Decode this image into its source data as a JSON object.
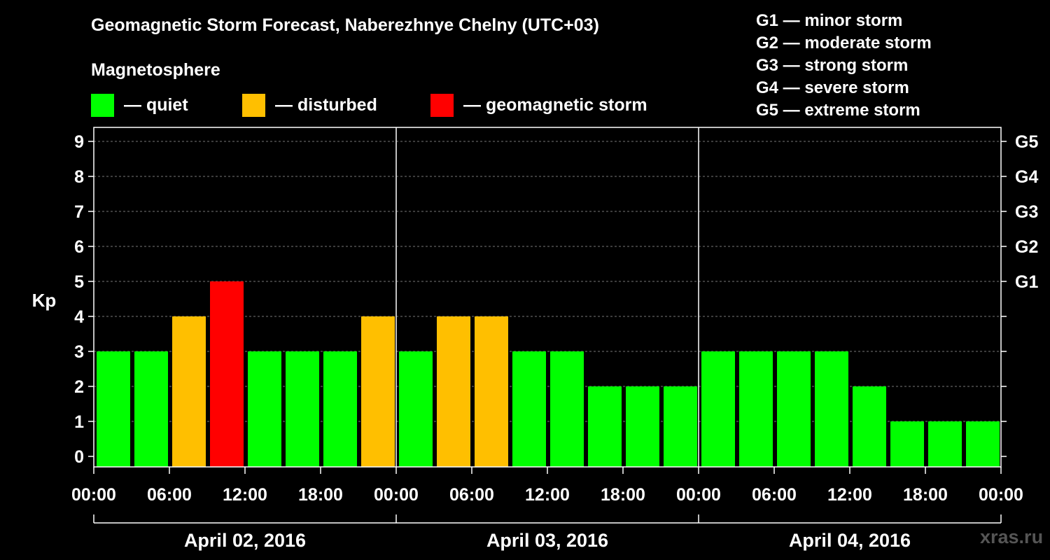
{
  "header": {
    "title": "Geomagnetic Storm Forecast, Naberezhnye Chelny (UTC+03)",
    "magnetosphere_label": "Magnetosphere"
  },
  "legend": {
    "items": [
      {
        "label": "— quiet",
        "color": "#00ff00"
      },
      {
        "label": "— disturbed",
        "color": "#ffbf00"
      },
      {
        "label": "— geomagnetic storm",
        "color": "#ff0000"
      }
    ]
  },
  "storm_scale": [
    "G1 — minor storm",
    "G2 — moderate storm",
    "G3 — strong storm",
    "G4 — severe storm",
    "G5 — extreme storm"
  ],
  "watermark": "xras.ru",
  "chart_data": {
    "type": "bar",
    "title": "Geomagnetic Storm Forecast, Naberezhnye Chelny (UTC+03)",
    "ylabel": "Kp",
    "xlabel": "",
    "ylim": [
      0,
      9
    ],
    "yticks": [
      "0",
      "1",
      "2",
      "3",
      "4",
      "5",
      "6",
      "7",
      "8",
      "9"
    ],
    "right_ticks": [
      {
        "value": 5,
        "label": "G1"
      },
      {
        "value": 6,
        "label": "G2"
      },
      {
        "value": 7,
        "label": "G3"
      },
      {
        "value": 8,
        "label": "G4"
      },
      {
        "value": 9,
        "label": "G5"
      }
    ],
    "x_tick_labels": [
      "00:00",
      "06:00",
      "12:00",
      "18:00",
      "00:00",
      "06:00",
      "12:00",
      "18:00",
      "00:00",
      "06:00",
      "12:00",
      "18:00",
      "00:00"
    ],
    "days": [
      "April 02, 2016",
      "April 03, 2016",
      "April 04, 2016"
    ],
    "interval_hours": 3,
    "values": [
      3,
      3,
      4,
      5,
      3,
      3,
      3,
      4,
      3,
      4,
      4,
      3,
      3,
      2,
      2,
      2,
      3,
      3,
      3,
      3,
      2,
      1,
      1,
      1
    ],
    "thresholds": {
      "disturbed": 4,
      "storm": 5
    },
    "grid": true
  }
}
